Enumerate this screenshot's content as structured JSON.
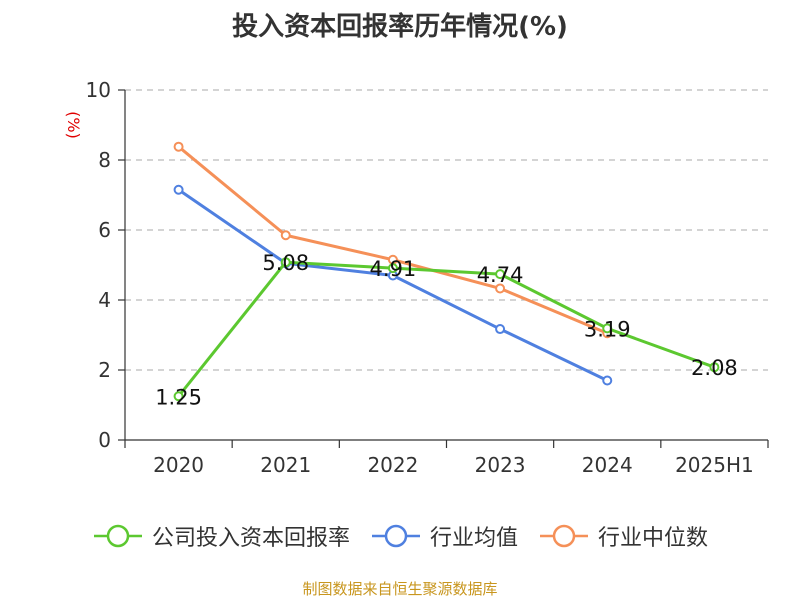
{
  "source_note": "制图数据来自恒生聚源数据库",
  "chart_data": {
    "type": "line",
    "title": "投入资本回报率历年情况(%)",
    "ylabel": "(%)",
    "xlabel": "",
    "categories": [
      "2020",
      "2021",
      "2022",
      "2023",
      "2024",
      "2025H1"
    ],
    "ylim": [
      0,
      10
    ],
    "yticks": [
      "0",
      "2",
      "4",
      "6",
      "8",
      "10"
    ],
    "grid": true,
    "legend_position": "bottom",
    "series": [
      {
        "name": "公司投入资本回报率",
        "color": "#5cc830",
        "values": [
          1.25,
          5.08,
          4.91,
          4.74,
          3.19,
          2.08
        ],
        "labels": [
          "1.25",
          "5.08",
          "4.91",
          "4.74",
          "3.19",
          "2.08"
        ]
      },
      {
        "name": "行业均值",
        "color": "#4f80e0",
        "values": [
          7.15,
          5.05,
          4.7,
          3.17,
          1.7,
          null
        ]
      },
      {
        "name": "行业中位数",
        "color": "#f59058",
        "values": [
          8.38,
          5.85,
          5.15,
          4.33,
          3.05,
          null
        ]
      }
    ]
  }
}
